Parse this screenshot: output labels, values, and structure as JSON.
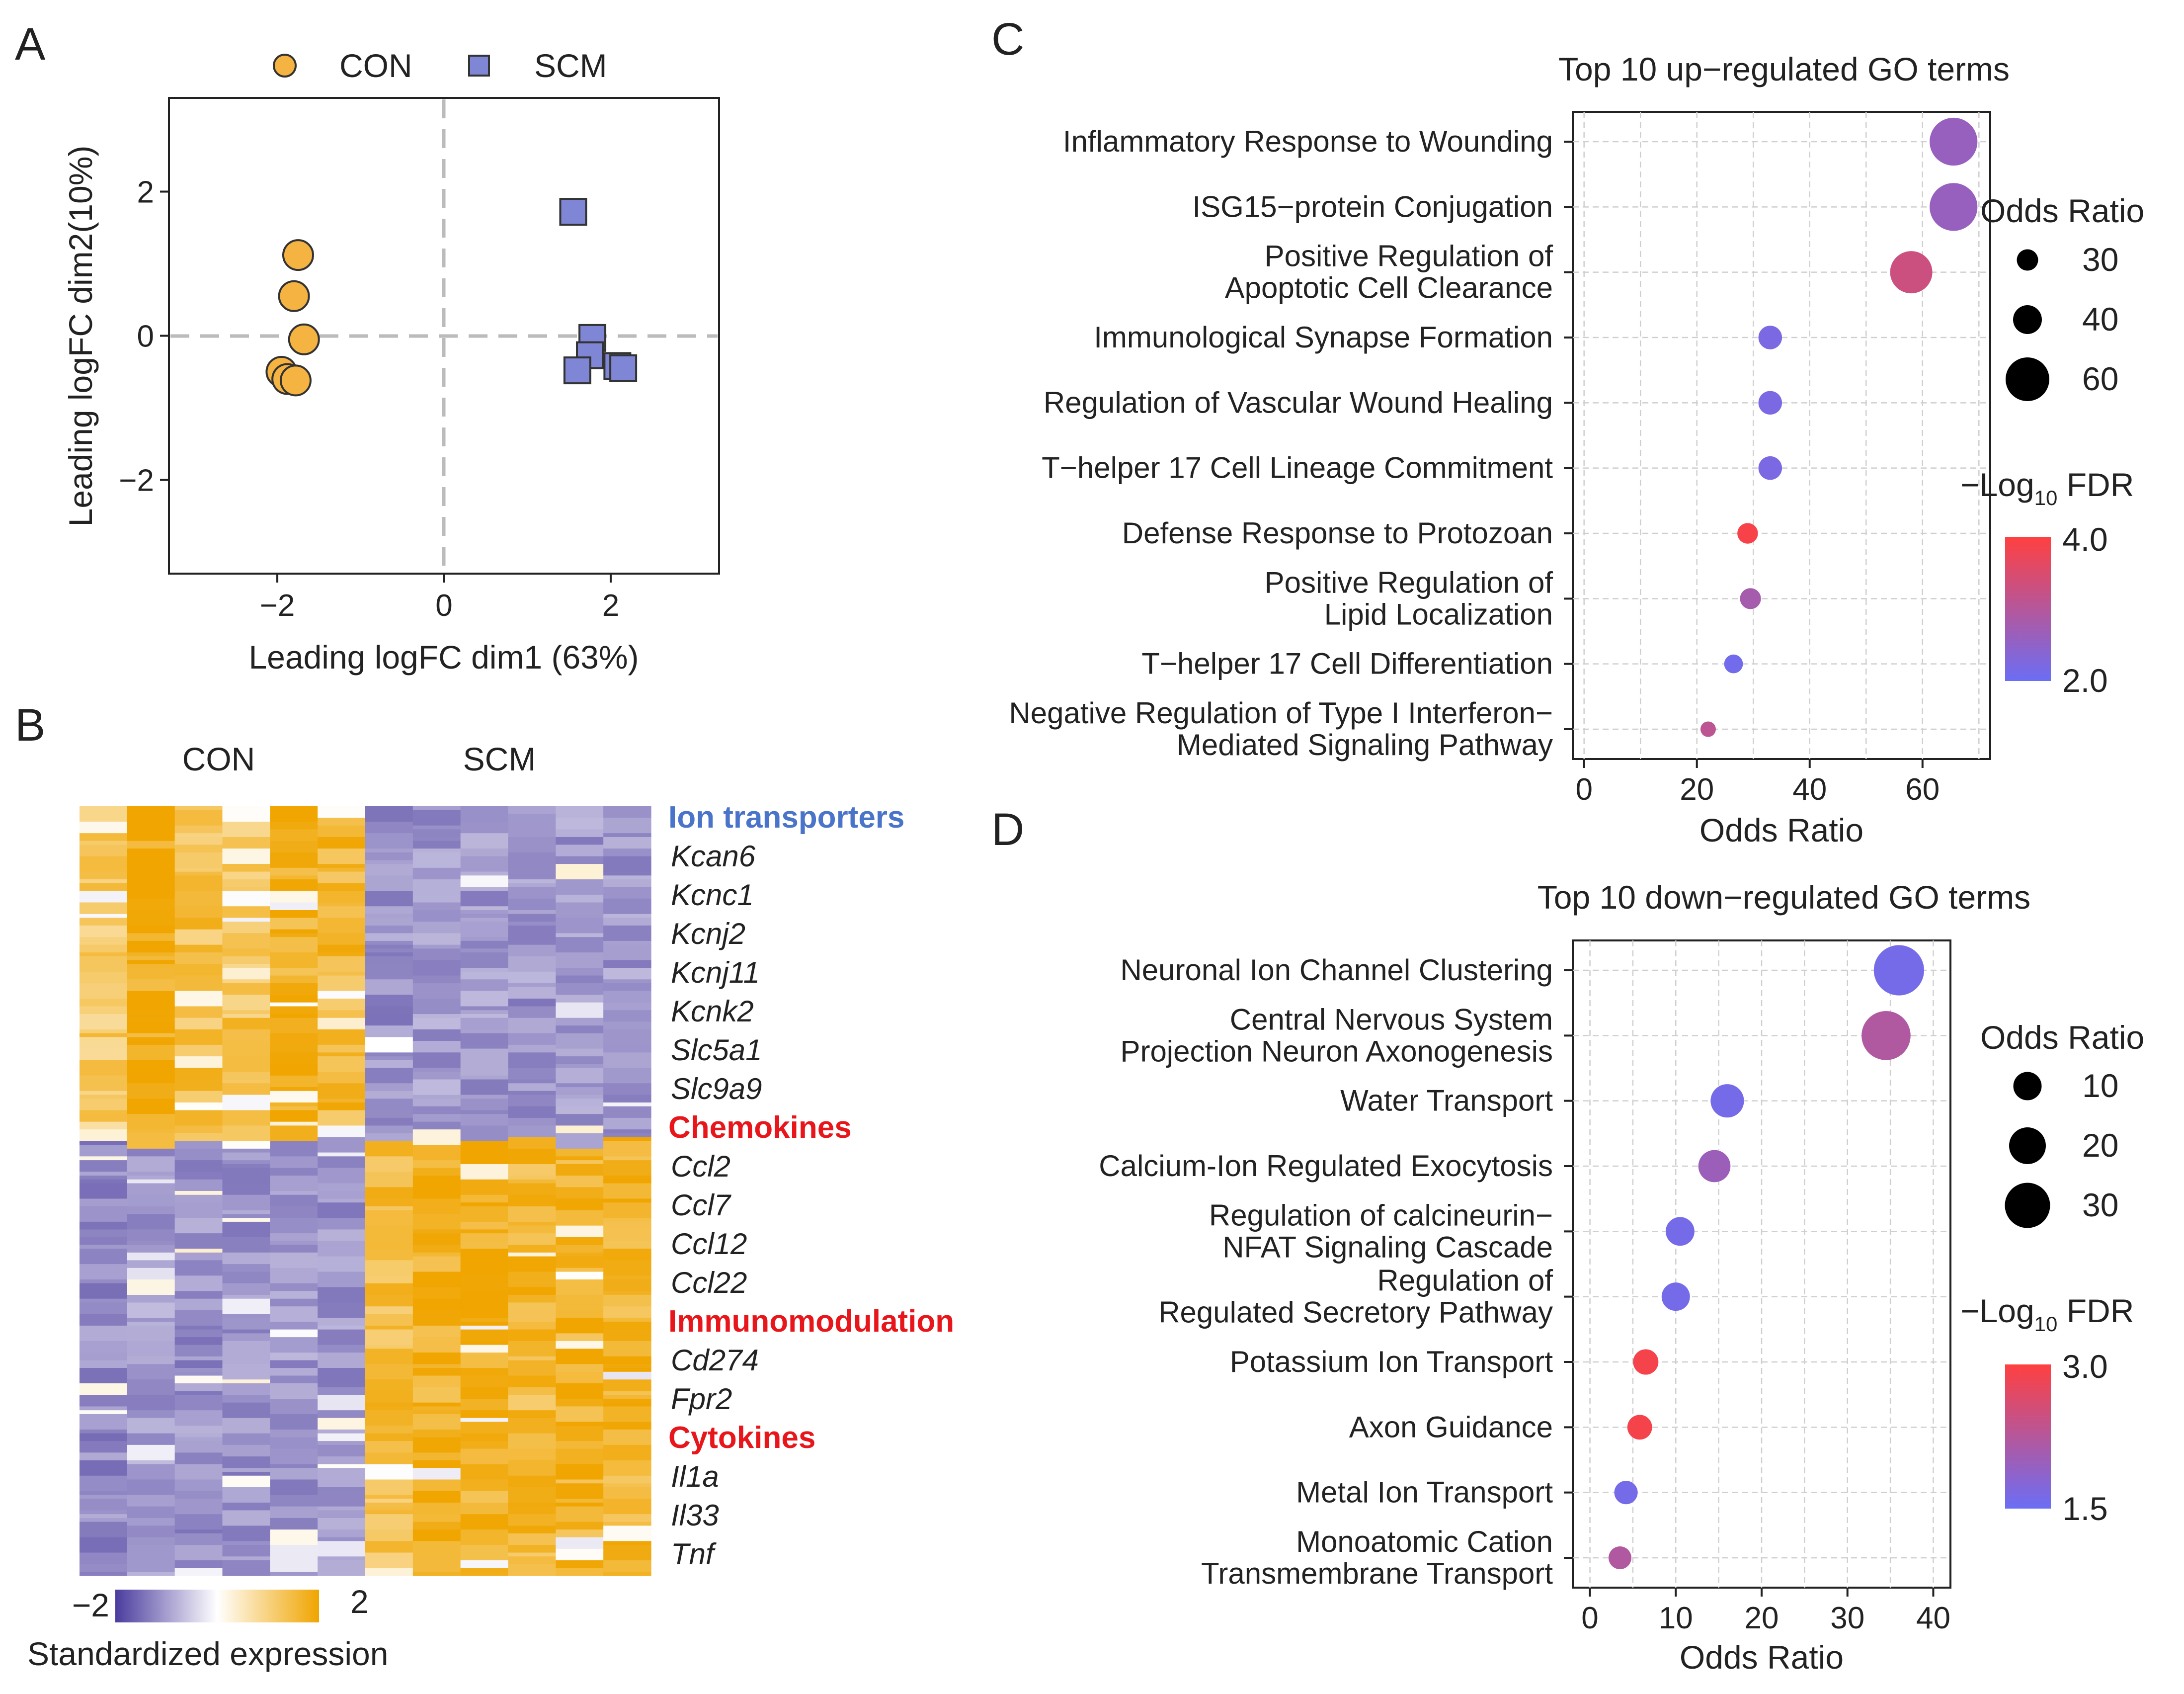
{
  "panel_labels": {
    "a": "A",
    "b": "B",
    "c": "C",
    "d": "D"
  },
  "colors": {
    "con": "#f5b342",
    "scm": "#7f86d6",
    "heat_low": "#4a3c9e",
    "heat_mid": "#ffffff",
    "heat_high": "#f0a500",
    "fdr_low": "#6b6ef5",
    "fdr_high": "#ff4040",
    "blue_group": "#4a74c9",
    "red_group": "#e8161b"
  },
  "chart_data": [
    {
      "id": "A",
      "type": "scatter",
      "xlabel": "Leading logFC dim1 (63%)",
      "ylabel": "Leading logFC dim2(10%)",
      "xlim": [
        -3.3,
        3.3
      ],
      "ylim": [
        -3.3,
        3.3
      ],
      "xticks": [
        -2,
        0,
        2
      ],
      "yticks": [
        -2,
        0,
        2
      ],
      "tick_labels_x": [
        "−2",
        "0",
        "2"
      ],
      "tick_labels_y": [
        "−2",
        "0",
        "2"
      ],
      "legend": [
        {
          "name": "CON",
          "shape": "circle"
        },
        {
          "name": "SCM",
          "shape": "square"
        }
      ],
      "series": [
        {
          "name": "CON",
          "points": [
            [
              -1.75,
              1.12
            ],
            [
              -1.8,
              0.55
            ],
            [
              -1.68,
              -0.05
            ],
            [
              -1.95,
              -0.5
            ],
            [
              -1.88,
              -0.6
            ],
            [
              -1.78,
              -0.62
            ]
          ]
        },
        {
          "name": "SCM",
          "points": [
            [
              1.55,
              1.72
            ],
            [
              1.78,
              -0.03
            ],
            [
              1.75,
              -0.27
            ],
            [
              1.6,
              -0.48
            ],
            [
              2.08,
              -0.42
            ],
            [
              2.15,
              -0.45
            ]
          ]
        }
      ]
    },
    {
      "id": "B",
      "type": "heatmap",
      "column_groups": [
        "CON",
        "SCM"
      ],
      "n_columns_per_group": 6,
      "legend_min": "−2",
      "legend_max": "2",
      "legend_title": "Standardized expression",
      "gene_groups": [
        {
          "label": "Ion transporters",
          "color": "blue",
          "genes": [
            "Kcan6",
            "Kcnc1",
            "Kcnj2",
            "Kcnj11",
            "Kcnk2",
            "Slc5a1",
            "Slc9a9"
          ]
        },
        {
          "label": "Chemokines",
          "color": "red",
          "genes": [
            "Ccl2",
            "Ccl7",
            "Ccl12",
            "Ccl22"
          ]
        },
        {
          "label": "Immunomodulation",
          "color": "red",
          "genes": [
            "Cd274",
            "Fpr2"
          ]
        },
        {
          "label": "Cytokines",
          "color": "red",
          "genes": [
            "Il1a",
            "Il33",
            "Tnf"
          ]
        }
      ],
      "down_fraction": 0.43
    },
    {
      "id": "C",
      "type": "scatter",
      "title": "Top 10 up−regulated GO terms",
      "xlabel": "Odds Ratio",
      "xlim": [
        -2,
        72
      ],
      "xticks": [
        0,
        20,
        40,
        60
      ],
      "tick_labels_x": [
        "0",
        "20",
        "40",
        "60"
      ],
      "size_legend_title": "Odds Ratio",
      "size_legend": [
        30,
        40,
        60
      ],
      "color_legend_title": "−Log",
      "color_legend_sub": "10",
      "color_legend_suffix": " FDR",
      "color_range": [
        2.0,
        4.0
      ],
      "color_range_labels": [
        "2.0",
        "4.0"
      ],
      "terms": [
        {
          "line1": "Inflammatory Response to Wounding",
          "line2": "",
          "odds": 65.5,
          "fdr": 2.6
        },
        {
          "line1": "ISG15−protein Conjugation",
          "line2": "",
          "odds": 65.5,
          "fdr": 2.6
        },
        {
          "line1": "Positive Regulation of",
          "line2": "Apoptotic Cell Clearance",
          "odds": 58.0,
          "fdr": 3.3
        },
        {
          "line1": "Immunological Synapse Formation",
          "line2": "",
          "odds": 33.0,
          "fdr": 2.2
        },
        {
          "line1": "Regulation of Vascular Wound Healing",
          "line2": "",
          "odds": 33.0,
          "fdr": 2.2
        },
        {
          "line1": "T−helper 17 Cell Lineage Commitment",
          "line2": "",
          "odds": 33.0,
          "fdr": 2.2
        },
        {
          "line1": "Defense Response to Protozoan",
          "line2": "",
          "odds": 29.0,
          "fdr": 3.9
        },
        {
          "line1": "Positive Regulation of",
          "line2": "Lipid Localization",
          "odds": 29.5,
          "fdr": 2.8
        },
        {
          "line1": "T−helper 17 Cell Differentiation",
          "line2": "",
          "odds": 26.5,
          "fdr": 2.1
        },
        {
          "line1": "Negative Regulation of Type I Interferon−",
          "line2": "Mediated Signaling Pathway",
          "odds": 22.0,
          "fdr": 3.1
        }
      ]
    },
    {
      "id": "D",
      "type": "scatter",
      "title": "Top 10 down−regulated GO terms",
      "xlabel": "Odds Ratio",
      "xlim": [
        -2,
        42
      ],
      "xticks": [
        0,
        10,
        20,
        30,
        40
      ],
      "tick_labels_x": [
        "0",
        "10",
        "20",
        "30",
        "40"
      ],
      "size_legend_title": "Odds Ratio",
      "size_legend": [
        10,
        20,
        30
      ],
      "color_legend_title": "−Log",
      "color_legend_sub": "10",
      "color_legend_suffix": " FDR",
      "color_range": [
        1.5,
        3.0
      ],
      "color_range_labels": [
        "1.5",
        "3.0"
      ],
      "terms": [
        {
          "line1": "Neuronal Ion Channel Clustering",
          "line2": "",
          "odds": 36.0,
          "fdr": 1.6
        },
        {
          "line1": "Central Nervous System",
          "line2": "Projection Neuron Axonogenesis",
          "odds": 34.5,
          "fdr": 2.2
        },
        {
          "line1": "Water Transport",
          "line2": "",
          "odds": 16.0,
          "fdr": 1.6
        },
        {
          "line1": "Calcium-Ion Regulated Exocytosis",
          "line2": "",
          "odds": 14.5,
          "fdr": 2.0
        },
        {
          "line1": "Regulation of calcineurin−",
          "line2": "NFAT Signaling Cascade",
          "odds": 10.5,
          "fdr": 1.6
        },
        {
          "line1": "Regulation of",
          "line2": "Regulated Secretory Pathway",
          "odds": 10.0,
          "fdr": 1.6
        },
        {
          "line1": "Potassium Ion Transport",
          "line2": "",
          "odds": 6.5,
          "fdr": 2.9
        },
        {
          "line1": "Axon Guidance",
          "line2": "",
          "odds": 5.8,
          "fdr": 2.9
        },
        {
          "line1": "Metal Ion Transport",
          "line2": "",
          "odds": 4.2,
          "fdr": 1.6
        },
        {
          "line1": "Monoatomic Cation",
          "line2": "Transmembrane Transport",
          "odds": 3.5,
          "fdr": 2.2
        }
      ]
    }
  ]
}
